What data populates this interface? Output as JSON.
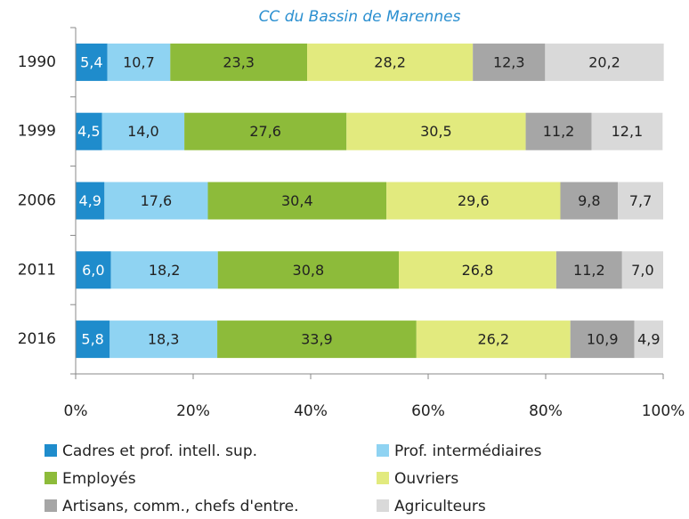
{
  "chart_data": {
    "type": "stacked_bar_horizontal",
    "title": "CC du Bassin de Marennes",
    "categories": [
      "1990",
      "1999",
      "2006",
      "2011",
      "2016"
    ],
    "series": [
      {
        "name": "Cadres et prof. intell. sup.",
        "color": "#1f8ccc",
        "values": [
          5.4,
          4.5,
          4.9,
          6.0,
          5.8
        ],
        "value_labels": [
          "5,4",
          "4,5",
          "4,9",
          "6,0",
          "5,8"
        ]
      },
      {
        "name": "Prof. intermédiaires",
        "color": "#8fd3f2",
        "values": [
          10.7,
          14.0,
          17.6,
          18.2,
          18.3
        ],
        "value_labels": [
          "10,7",
          "14,0",
          "17,6",
          "18,2",
          "18,3"
        ]
      },
      {
        "name": "Employés",
        "color": "#8dbb3a",
        "values": [
          23.3,
          27.6,
          30.4,
          30.8,
          33.9
        ],
        "value_labels": [
          "23,3",
          "27,6",
          "30,4",
          "30,8",
          "33,9"
        ]
      },
      {
        "name": "Ouvriers",
        "color": "#e2ea7e",
        "values": [
          28.2,
          30.5,
          29.6,
          26.8,
          26.2
        ],
        "value_labels": [
          "28,2",
          "30,5",
          "29,6",
          "26,8",
          "26,2"
        ]
      },
      {
        "name": "Artisans, comm., chefs d'entre.",
        "color": "#a6a6a6",
        "values": [
          12.3,
          11.2,
          9.8,
          11.2,
          10.9
        ],
        "value_labels": [
          "12,3",
          "11,2",
          "9,8",
          "11,2",
          "10,9"
        ]
      },
      {
        "name": "Agriculteurs",
        "color": "#d9d9d9",
        "values": [
          20.2,
          12.1,
          7.7,
          7.0,
          4.9
        ],
        "value_labels": [
          "20,2",
          "12,1",
          "7,7",
          "7,0",
          "4,9"
        ]
      }
    ],
    "xlim": [
      0,
      100
    ],
    "xticks": [
      {
        "value": 0,
        "label": "0%"
      },
      {
        "value": 20,
        "label": "20%"
      },
      {
        "value": 40,
        "label": "40%"
      },
      {
        "value": 60,
        "label": "60%"
      },
      {
        "value": 80,
        "label": "80%"
      },
      {
        "value": 100,
        "label": "100%"
      }
    ],
    "legend": "bottom"
  }
}
